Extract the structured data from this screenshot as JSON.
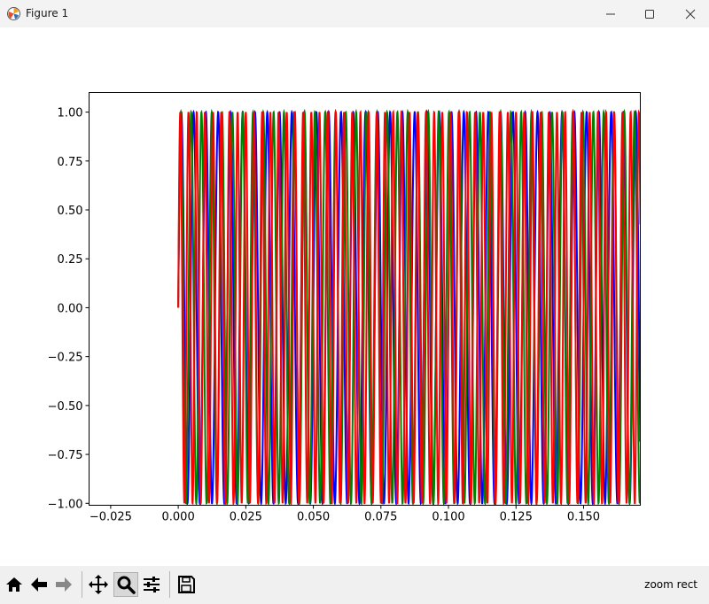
{
  "window": {
    "title": "Figure 1",
    "controls": [
      "minimize-icon",
      "maximize-icon",
      "close-icon"
    ]
  },
  "toolbar": {
    "buttons": [
      "home-icon",
      "back-icon",
      "forward-icon",
      "pan-icon",
      "zoom-icon",
      "configure-subplots-icon",
      "save-icon"
    ],
    "active": "zoom-icon",
    "status": "zoom rect"
  },
  "chart_data": {
    "type": "line",
    "title": "",
    "xlabel": "",
    "ylabel": "",
    "xlim": [
      -0.033,
      0.171
    ],
    "ylim": [
      -1.01,
      1.1
    ],
    "x_ticks": [
      "−0.025",
      "0.000",
      "0.025",
      "0.050",
      "0.075",
      "0.100",
      "0.125",
      "0.150"
    ],
    "x_tick_values": [
      -0.025,
      0.0,
      0.025,
      0.05,
      0.075,
      0.1,
      0.125,
      0.15
    ],
    "y_ticks": [
      "1.00",
      "0.75",
      "0.50",
      "0.25",
      "0.00",
      "−0.25",
      "−0.50",
      "−0.75",
      "−1.00"
    ],
    "y_tick_values": [
      1.0,
      0.75,
      0.5,
      0.25,
      0.0,
      -0.25,
      -0.5,
      -0.75,
      -1.0
    ],
    "series": [
      {
        "color": "#0000ff",
        "function": "sine",
        "frequency_hz": 220,
        "x_start": 0.0,
        "amplitude": 1.0
      },
      {
        "color": "#008000",
        "function": "sine",
        "frequency_hz": 262,
        "x_start": 0.0,
        "amplitude": 1.0
      },
      {
        "color": "#ff0000",
        "function": "sine",
        "frequency_hz": 330,
        "x_start": 0.0,
        "amplitude": 1.0
      }
    ],
    "grid": false,
    "legend": "none"
  }
}
